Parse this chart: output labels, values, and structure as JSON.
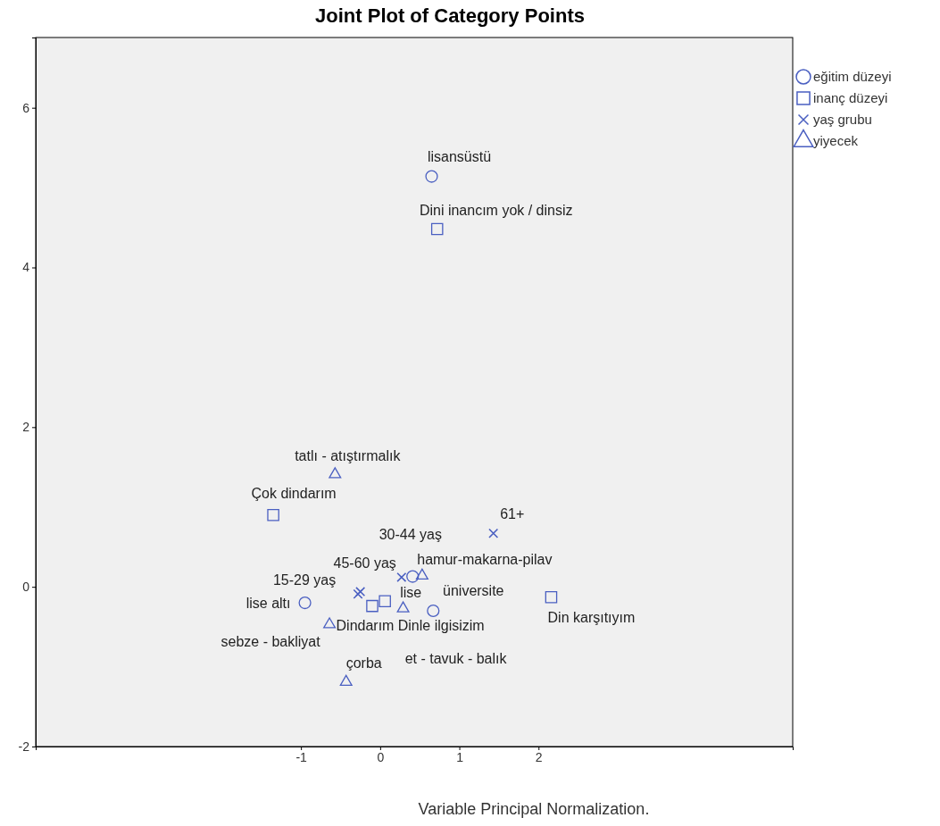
{
  "chart_data": {
    "type": "scatter",
    "title": "Joint Plot of Category Points",
    "xlabel": "Variable Principal Normalization.",
    "xlim": [
      -4.35,
      5.21
    ],
    "ylim": [
      -2,
      6.88
    ],
    "xticks": [
      -1,
      0,
      1,
      2
    ],
    "yticks": [
      -2,
      0,
      2,
      4,
      6
    ],
    "grid": false,
    "legend": "top right",
    "series": [
      {
        "name": "eğitim düzeyi",
        "color": "#4a5fc1",
        "marker": "circle",
        "x": [
          0.65,
          -0.95,
          0.41,
          0.67
        ],
        "values": [
          5.14,
          -0.2,
          0.13,
          -0.3
        ],
        "value_labels": [
          "lisansüstü",
          "lise altı",
          "lise",
          "üniversite"
        ]
      },
      {
        "name": "inanç düzeyi",
        "color": "#4a5fc1",
        "marker": "square",
        "x": [
          0.72,
          -1.35,
          -0.1,
          0.06,
          2.16
        ],
        "values": [
          4.48,
          0.9,
          -0.24,
          -0.18,
          -0.13
        ],
        "value_labels": [
          "Dini inancım yok / dinsiz",
          "Çok dindarım",
          "Dindarım",
          "Dinle ilgisizim",
          "Din karşıtıyım"
        ]
      },
      {
        "name": "yaş grubu",
        "color": "#4a5fc1",
        "marker": "cross",
        "x": [
          -0.28,
          0.27,
          -0.25,
          1.43
        ],
        "values": [
          -0.09,
          0.12,
          -0.06,
          0.67
        ],
        "value_labels": [
          "15-29 yaş",
          "30-44 yaş",
          "45-60 yaş",
          "61+"
        ]
      },
      {
        "name": "yiyecek",
        "color": "#4a5fc1",
        "marker": "triangle",
        "x": [
          -0.57,
          0.53,
          0.29,
          -0.64,
          -0.43
        ],
        "values": [
          1.42,
          0.15,
          -0.26,
          -0.46,
          -1.18
        ],
        "value_labels": [
          "tatlı - atıştırmalık",
          "hamur-makarna-pilav",
          "et - tavuk - balık",
          "sebze - bakliyat",
          "çorba"
        ]
      }
    ]
  }
}
